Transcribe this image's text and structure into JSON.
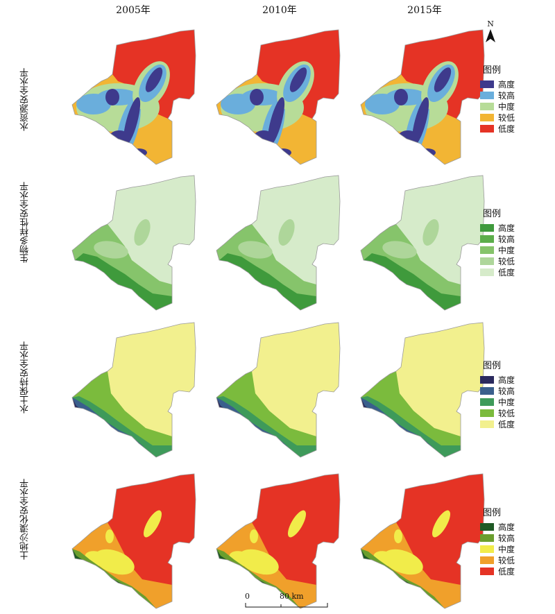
{
  "years": [
    "2005年",
    "2010年",
    "2015年"
  ],
  "rows": [
    {
      "label": "水资源安全水平",
      "legend_title": "图例",
      "classes": [
        {
          "name": "高度",
          "color": "#3e3a8c"
        },
        {
          "name": "较高",
          "color": "#6aaedc"
        },
        {
          "name": "中度",
          "color": "#b7dc98"
        },
        {
          "name": "较低",
          "color": "#f2b534"
        },
        {
          "name": "低度",
          "color": "#e53325"
        }
      ]
    },
    {
      "label": "生物多样性安全水平",
      "legend_title": "图例",
      "classes": [
        {
          "name": "高度",
          "color": "#3f9a3c"
        },
        {
          "name": "较高",
          "color": "#5cae4b"
        },
        {
          "name": "中度",
          "color": "#86c46b"
        },
        {
          "name": "较低",
          "color": "#aed69a"
        },
        {
          "name": "低度",
          "color": "#d6ebca"
        }
      ]
    },
    {
      "label": "水土保持安全水平",
      "legend_title": "图例",
      "classes": [
        {
          "name": "高度",
          "color": "#2b2a5e"
        },
        {
          "name": "较高",
          "color": "#3a5f8c"
        },
        {
          "name": "中度",
          "color": "#3e9a5a"
        },
        {
          "name": "较低",
          "color": "#7bbb3d"
        },
        {
          "name": "低度",
          "color": "#f2f08e"
        }
      ]
    },
    {
      "label": "土地沙漠化安全水平",
      "legend_title": "图例",
      "classes": [
        {
          "name": "高度",
          "color": "#1f5a25"
        },
        {
          "name": "较高",
          "color": "#6a9e2e"
        },
        {
          "name": "中度",
          "color": "#f1ec4a"
        },
        {
          "name": "较低",
          "color": "#f0a02b"
        },
        {
          "name": "低度",
          "color": "#e53325"
        }
      ]
    }
  ],
  "north_label": "N",
  "scale": {
    "start": "0",
    "end": "80 km"
  },
  "icons": {
    "north_arrow": "north-arrow-icon"
  }
}
